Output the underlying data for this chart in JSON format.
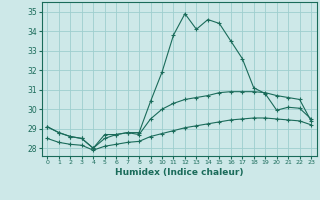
{
  "title": "",
  "xlabel": "Humidex (Indice chaleur)",
  "ylabel": "",
  "bg_color": "#cde8e8",
  "grid_color": "#9ecece",
  "line_color": "#1a6b5a",
  "x_ticks": [
    0,
    1,
    2,
    3,
    4,
    5,
    6,
    7,
    8,
    9,
    10,
    11,
    12,
    13,
    14,
    15,
    16,
    17,
    18,
    19,
    20,
    21,
    22,
    23
  ],
  "ylim": [
    27.6,
    35.5
  ],
  "xlim": [
    -0.5,
    23.5
  ],
  "yticks": [
    28,
    29,
    30,
    31,
    32,
    33,
    34,
    35
  ],
  "series": [
    {
      "x": [
        0,
        1,
        2,
        3,
        4,
        5,
        6,
        7,
        8,
        9,
        10,
        11,
        12,
        13,
        14,
        15,
        16,
        17,
        18,
        19,
        20,
        21,
        22,
        23
      ],
      "y": [
        29.1,
        28.8,
        28.6,
        28.5,
        28.0,
        28.7,
        28.7,
        28.8,
        28.8,
        30.4,
        31.9,
        33.8,
        34.9,
        34.1,
        34.6,
        34.4,
        33.5,
        32.6,
        31.1,
        30.8,
        29.95,
        30.1,
        30.05,
        29.5
      ]
    },
    {
      "x": [
        0,
        1,
        2,
        3,
        4,
        5,
        6,
        7,
        8,
        9,
        10,
        11,
        12,
        13,
        14,
        15,
        16,
        17,
        18,
        19,
        20,
        21,
        22,
        23
      ],
      "y": [
        29.1,
        28.8,
        28.6,
        28.5,
        28.0,
        28.5,
        28.7,
        28.8,
        28.7,
        29.5,
        30.0,
        30.3,
        30.5,
        30.6,
        30.7,
        30.85,
        30.9,
        30.9,
        30.9,
        30.85,
        30.7,
        30.6,
        30.5,
        29.4
      ]
    },
    {
      "x": [
        0,
        1,
        2,
        3,
        4,
        5,
        6,
        7,
        8,
        9,
        10,
        11,
        12,
        13,
        14,
        15,
        16,
        17,
        18,
        19,
        20,
        21,
        22,
        23
      ],
      "y": [
        28.5,
        28.3,
        28.2,
        28.15,
        27.9,
        28.1,
        28.2,
        28.3,
        28.35,
        28.6,
        28.75,
        28.9,
        29.05,
        29.15,
        29.25,
        29.35,
        29.45,
        29.5,
        29.55,
        29.55,
        29.5,
        29.45,
        29.4,
        29.2
      ]
    }
  ]
}
